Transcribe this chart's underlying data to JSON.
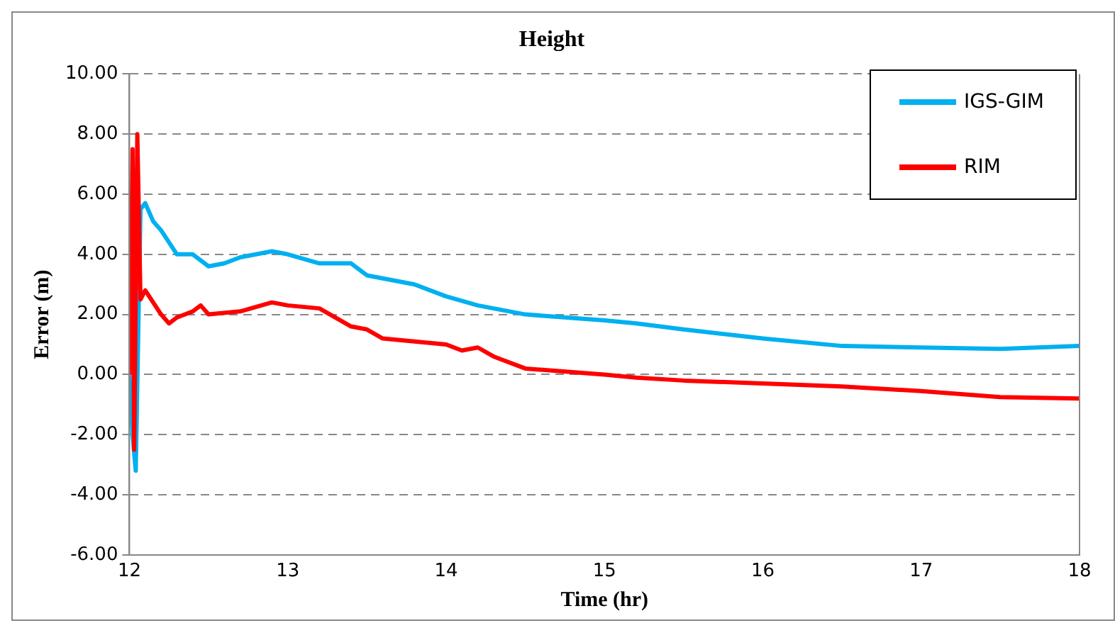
{
  "chart_data": {
    "type": "line",
    "title": "Height",
    "xlabel": "Time (hr)",
    "ylabel": "Error (m)",
    "xlim": [
      12,
      18
    ],
    "xticks": [
      12,
      13,
      14,
      15,
      16,
      17,
      18
    ],
    "ylim": [
      -6,
      10
    ],
    "yticks": [
      {
        "value": -6,
        "label": "-6.00"
      },
      {
        "value": -4,
        "label": "-4.00"
      },
      {
        "value": -2,
        "label": "-2.00"
      },
      {
        "value": 0,
        "label": "0.00"
      },
      {
        "value": 2,
        "label": "2.00"
      },
      {
        "value": 4,
        "label": "4.00"
      },
      {
        "value": 6,
        "label": "6.00"
      },
      {
        "value": 8,
        "label": "8.00"
      },
      {
        "value": 10,
        "label": "10.00"
      }
    ],
    "grid": "y",
    "legend": "top right",
    "marker": "none",
    "line_style": "solid",
    "series": [
      {
        "name": "IGS-GIM",
        "color": "#00b0f0",
        "x": [
          12,
          12.02,
          12.04,
          12.07,
          12.1,
          12.15,
          12.2,
          12.3,
          12.4,
          12.5,
          12.6,
          12.7,
          12.8,
          12.9,
          13,
          13.2,
          13.4,
          13.5,
          13.8,
          14,
          14.2,
          14.5,
          15,
          15.2,
          15.5,
          16,
          16.5,
          17,
          17.5,
          18
        ],
        "values": [
          0,
          -2,
          -3.2,
          5.5,
          5.7,
          5.1,
          4.8,
          4.0,
          4.0,
          3.6,
          3.7,
          3.9,
          4.0,
          4.1,
          4.0,
          3.7,
          3.7,
          3.3,
          3.0,
          2.6,
          2.3,
          2.0,
          1.8,
          1.7,
          1.5,
          1.2,
          0.95,
          0.9,
          0.85,
          0.95
        ]
      },
      {
        "name": "RIM",
        "color": "#ff0000",
        "x": [
          12,
          12.02,
          12.03,
          12.05,
          12.07,
          12.1,
          12.2,
          12.25,
          12.3,
          12.4,
          12.45,
          12.5,
          12.7,
          12.9,
          13,
          13.2,
          13.4,
          13.5,
          13.6,
          14,
          14.1,
          14.2,
          14.3,
          14.5,
          15,
          15.2,
          15.5,
          16,
          16.5,
          17,
          17.5,
          18
        ],
        "values": [
          0,
          7.5,
          -2.5,
          8.0,
          2.5,
          2.8,
          2.0,
          1.7,
          1.9,
          2.1,
          2.3,
          2.0,
          2.1,
          2.4,
          2.3,
          2.2,
          1.6,
          1.5,
          1.2,
          1.0,
          0.8,
          0.9,
          0.6,
          0.2,
          0.0,
          -0.1,
          -0.2,
          -0.3,
          -0.4,
          -0.55,
          -0.75,
          -0.8
        ]
      }
    ]
  }
}
